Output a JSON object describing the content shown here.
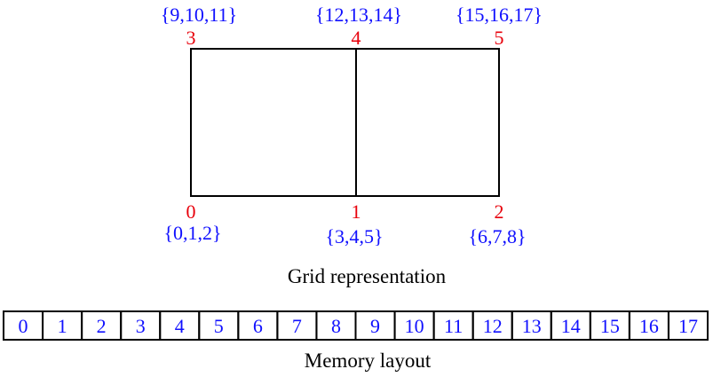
{
  "grid": {
    "nodes": [
      {
        "id": "0",
        "dofs": "{0,1,2}"
      },
      {
        "id": "1",
        "dofs": "{3,4,5}"
      },
      {
        "id": "2",
        "dofs": "{6,7,8}"
      },
      {
        "id": "3",
        "dofs": "{9,10,11}"
      },
      {
        "id": "4",
        "dofs": "{12,13,14}"
      },
      {
        "id": "5",
        "dofs": "{15,16,17}"
      }
    ],
    "caption": "Grid representation"
  },
  "memory": {
    "cells": [
      "0",
      "1",
      "2",
      "3",
      "4",
      "5",
      "6",
      "7",
      "8",
      "9",
      "10",
      "11",
      "12",
      "13",
      "14",
      "15",
      "16",
      "17"
    ],
    "caption": "Memory layout"
  },
  "colors": {
    "node_number": "#e8000b",
    "dof_label": "#1010ff",
    "edge": "#000000"
  }
}
